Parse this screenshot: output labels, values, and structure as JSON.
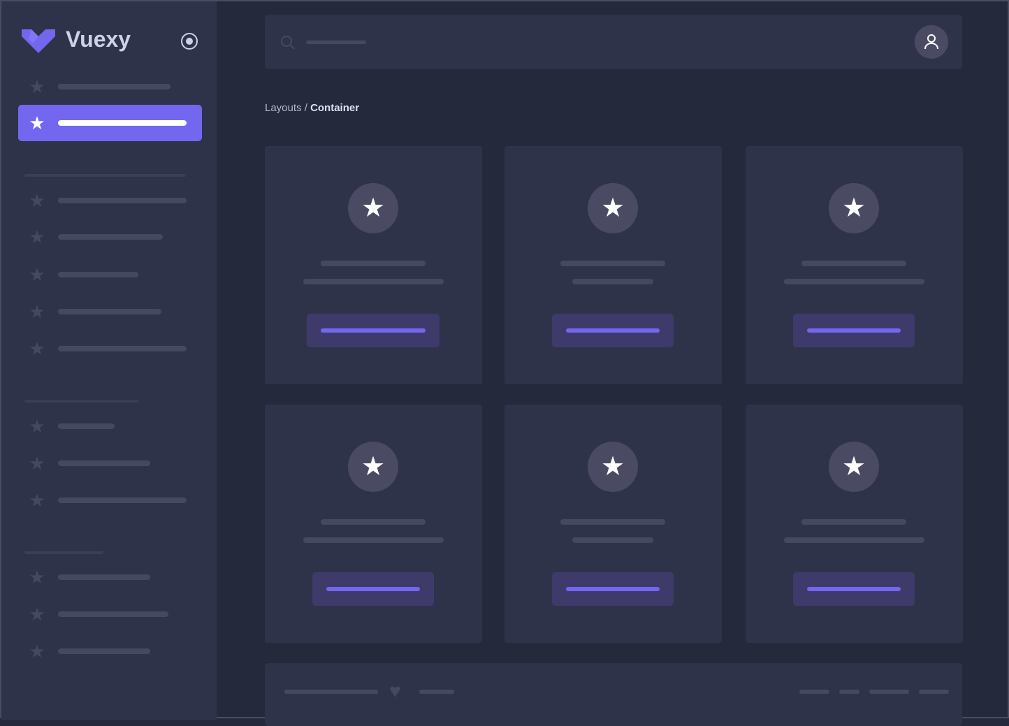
{
  "brand": {
    "name": "Vuexy",
    "logo_icon": "vuexy-logo",
    "toggle_icon": "radio-circle-icon"
  },
  "header": {
    "search_icon": "search-icon",
    "avatar_icon": "user-icon"
  },
  "breadcrumb": {
    "parent": "Layouts",
    "separator": " / ",
    "current": "Container"
  },
  "sidebar": {
    "active_index": 1,
    "item_icon": "star-icon"
  },
  "cards": {
    "count": 6,
    "icon": "star-icon"
  },
  "footer": {
    "icon": "heart-icon"
  },
  "colors": {
    "accent": "#7367f0",
    "sidebar_bg": "#2f3349",
    "page_bg": "#25293c",
    "card_bg": "#2f3349",
    "placeholder": "#464860",
    "button_bg": "#3e3b6b"
  }
}
